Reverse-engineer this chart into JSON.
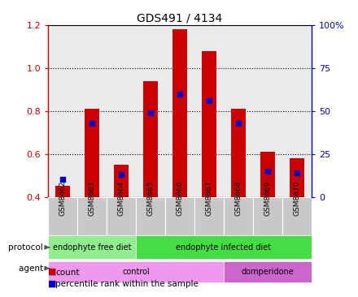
{
  "title": "GDS491 / 4134",
  "samples": [
    "GSM8662",
    "GSM8663",
    "GSM8664",
    "GSM8665",
    "GSM8666",
    "GSM8667",
    "GSM8668",
    "GSM8669",
    "GSM8670"
  ],
  "count_values": [
    0.45,
    0.81,
    0.55,
    0.94,
    1.18,
    1.08,
    0.81,
    0.61,
    0.58
  ],
  "percentile_values": [
    10,
    43,
    13,
    49,
    60,
    56,
    43,
    15,
    14
  ],
  "ylim": [
    0.4,
    1.2
  ],
  "yticks_left": [
    0.4,
    0.6,
    0.8,
    1.0,
    1.2
  ],
  "yticks_right": [
    0,
    25,
    50,
    75,
    100
  ],
  "bar_color": "#cc0000",
  "dot_color": "#0000cc",
  "bar_width": 0.5,
  "dotted_lines": [
    0.6,
    0.8,
    1.0
  ],
  "protocol_groups": [
    {
      "label": "endophyte free diet",
      "start": 0,
      "end": 3,
      "color": "#90ee90"
    },
    {
      "label": "endophyte infected diet",
      "start": 3,
      "end": 9,
      "color": "#44dd44"
    }
  ],
  "agent_groups": [
    {
      "label": "control",
      "start": 0,
      "end": 6,
      "color": "#ee99ee"
    },
    {
      "label": "domperidone",
      "start": 6,
      "end": 9,
      "color": "#cc66cc"
    }
  ],
  "tick_color_left": "#cc0000",
  "tick_color_right": "#0000cc",
  "bg_color": "#ffffff",
  "sample_bg": "#c8c8c8"
}
